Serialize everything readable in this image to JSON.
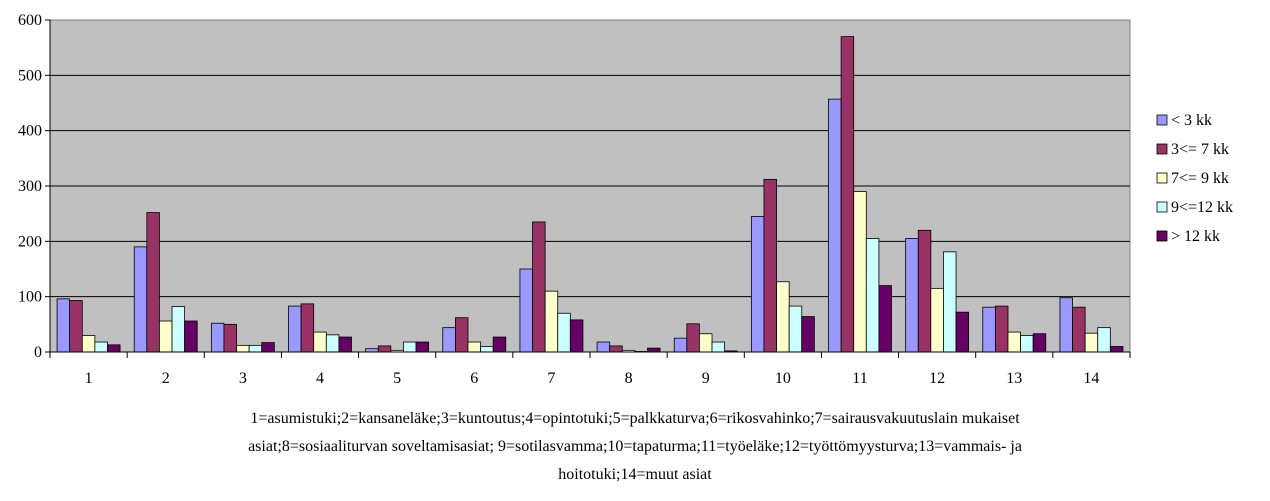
{
  "chart_data": {
    "type": "bar",
    "categories": [
      "1",
      "2",
      "3",
      "4",
      "5",
      "6",
      "7",
      "8",
      "9",
      "10",
      "11",
      "12",
      "13",
      "14"
    ],
    "y_ticks": [
      "0",
      "100",
      "200",
      "300",
      "400",
      "500",
      "600"
    ],
    "ylim": [
      0,
      600
    ],
    "grid": true,
    "legend_position": "right",
    "series": [
      {
        "name": "< 3 kk",
        "color": "#9999ff",
        "values": [
          96,
          190,
          52,
          83,
          6,
          44,
          150,
          18,
          25,
          245,
          457,
          205,
          81,
          98
        ]
      },
      {
        "name": "3<= 7 kk",
        "color": "#993366",
        "values": [
          93,
          252,
          50,
          87,
          11,
          62,
          235,
          11,
          51,
          312,
          570,
          220,
          83,
          81
        ]
      },
      {
        "name": "7<= 9 kk",
        "color": "#ffffcc",
        "values": [
          30,
          56,
          12,
          36,
          3,
          18,
          110,
          3,
          33,
          127,
          290,
          115,
          36,
          34
        ]
      },
      {
        "name": "9<=12 kk",
        "color": "#ccffff",
        "values": [
          18,
          82,
          12,
          31,
          18,
          10,
          70,
          1,
          18,
          83,
          205,
          181,
          30,
          44
        ]
      },
      {
        "name": "> 12 kk",
        "color": "#660066",
        "values": [
          13,
          56,
          17,
          27,
          18,
          27,
          58,
          7,
          2,
          64,
          120,
          72,
          33,
          10
        ]
      }
    ]
  },
  "caption": {
    "line1": "1=asumistuki;2=kansaneläke;3=kuntoutus;4=opintotuki;5=palkkaturva;6=rikosvahinko;7=sairausvakuutuslain mukaiset",
    "line2": "asiat;8=sosiaaliturvan soveltamisasiat; 9=sotilasvamma;10=tapaturma;11=työeläke;12=työttömyysturva;13=vammais- ja",
    "line3": "hoitotuki;14=muut asiat"
  }
}
